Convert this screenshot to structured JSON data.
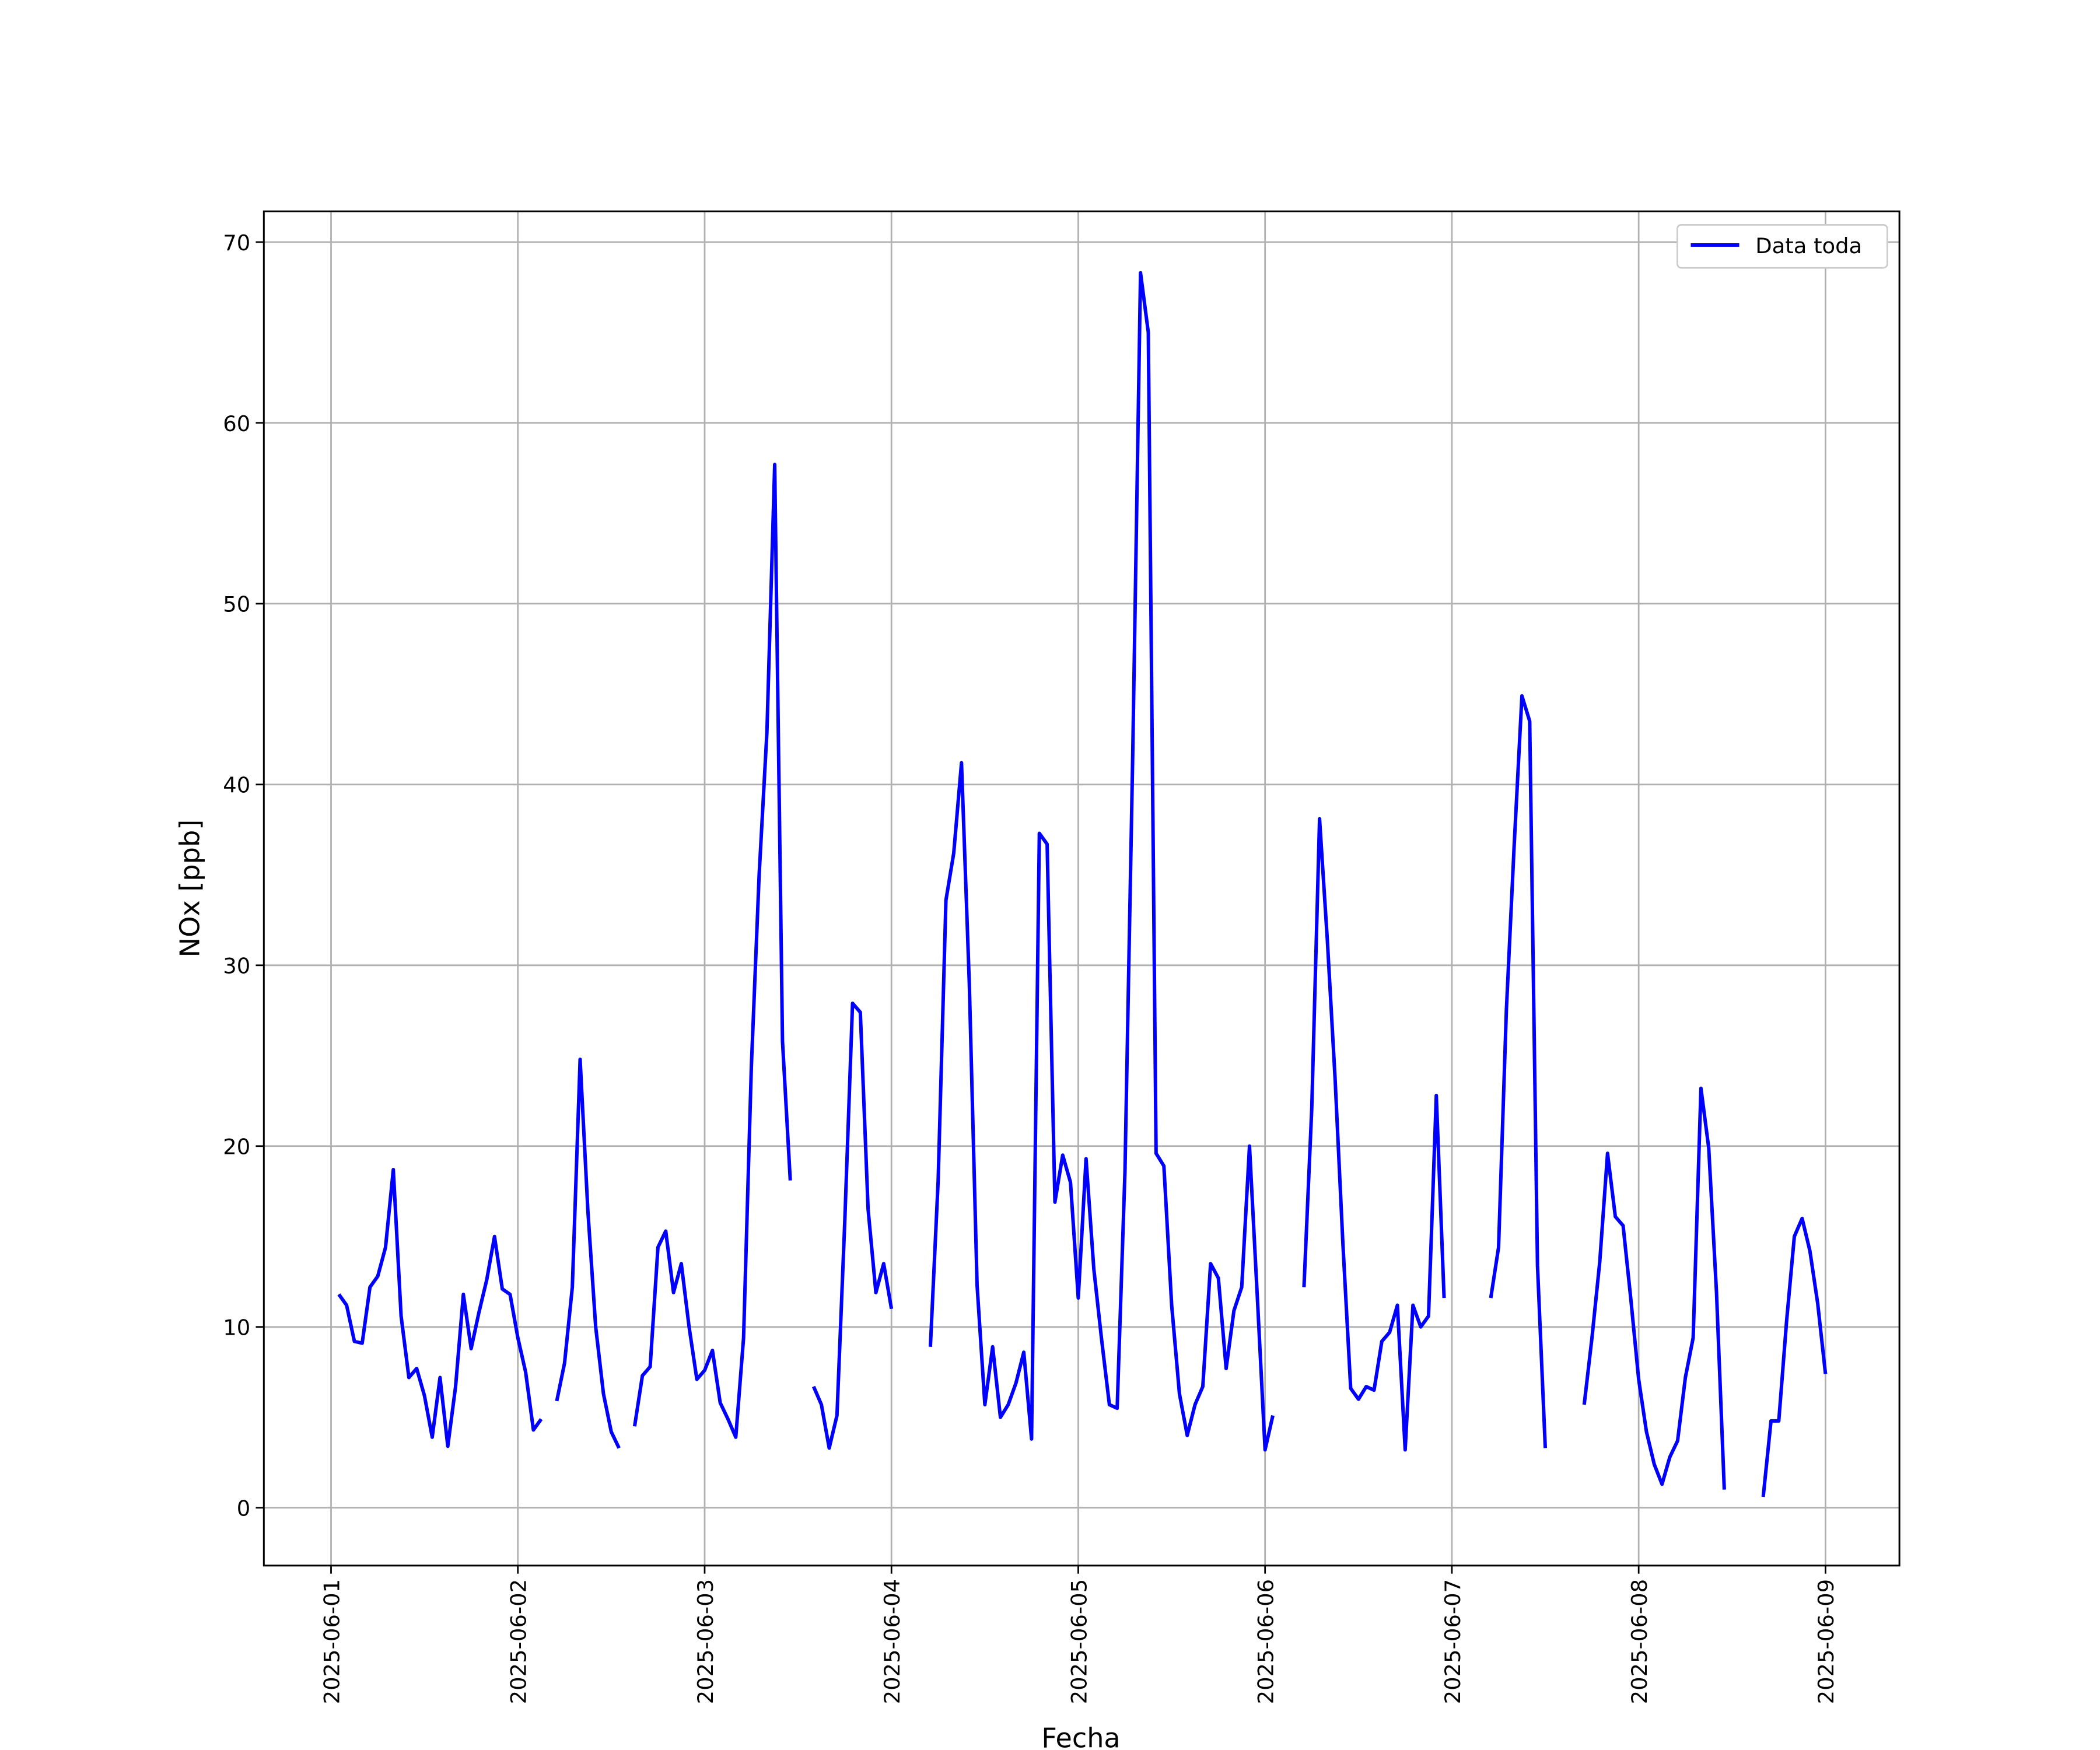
{
  "chart_data": {
    "type": "line",
    "xlabel": "Fecha",
    "ylabel": "NOx [ppb]",
    "x": [
      "2025-06-01 01:00",
      "2025-06-01 02:00",
      "2025-06-01 03:00",
      "2025-06-01 04:00",
      "2025-06-01 05:00",
      "2025-06-01 06:00",
      "2025-06-01 07:00",
      "2025-06-01 08:00",
      "2025-06-01 09:00",
      "2025-06-01 10:00",
      "2025-06-01 11:00",
      "2025-06-01 12:00",
      "2025-06-01 13:00",
      "2025-06-01 14:00",
      "2025-06-01 15:00",
      "2025-06-01 16:00",
      "2025-06-01 17:00",
      "2025-06-01 18:00",
      "2025-06-01 19:00",
      "2025-06-01 20:00",
      "2025-06-01 21:00",
      "2025-06-01 22:00",
      "2025-06-01 23:00",
      "2025-06-02 00:00",
      "2025-06-02 01:00",
      "2025-06-02 02:00",
      "2025-06-02 03:00",
      "2025-06-02 04:00",
      "2025-06-02 05:00",
      "2025-06-02 06:00",
      "2025-06-02 07:00",
      "2025-06-02 08:00",
      "2025-06-02 09:00",
      "2025-06-02 10:00",
      "2025-06-02 11:00",
      "2025-06-02 12:00",
      "2025-06-02 13:00",
      "2025-06-02 14:00",
      "2025-06-02 15:00",
      "2025-06-02 16:00",
      "2025-06-02 17:00",
      "2025-06-02 18:00",
      "2025-06-02 19:00",
      "2025-06-02 20:00",
      "2025-06-02 21:00",
      "2025-06-02 22:00",
      "2025-06-02 23:00",
      "2025-06-03 00:00",
      "2025-06-03 01:00",
      "2025-06-03 02:00",
      "2025-06-03 03:00",
      "2025-06-03 04:00",
      "2025-06-03 05:00",
      "2025-06-03 06:00",
      "2025-06-03 07:00",
      "2025-06-03 08:00",
      "2025-06-03 09:00",
      "2025-06-03 10:00",
      "2025-06-03 11:00",
      "2025-06-03 12:00",
      "2025-06-03 13:00",
      "2025-06-03 14:00",
      "2025-06-03 15:00",
      "2025-06-03 16:00",
      "2025-06-03 17:00",
      "2025-06-03 18:00",
      "2025-06-03 19:00",
      "2025-06-03 20:00",
      "2025-06-03 21:00",
      "2025-06-03 22:00",
      "2025-06-03 23:00",
      "2025-06-04 00:00",
      "2025-06-04 01:00",
      "2025-06-04 02:00",
      "2025-06-04 03:00",
      "2025-06-04 04:00",
      "2025-06-04 05:00",
      "2025-06-04 06:00",
      "2025-06-04 07:00",
      "2025-06-04 08:00",
      "2025-06-04 09:00",
      "2025-06-04 10:00",
      "2025-06-04 11:00",
      "2025-06-04 12:00",
      "2025-06-04 13:00",
      "2025-06-04 14:00",
      "2025-06-04 15:00",
      "2025-06-04 16:00",
      "2025-06-04 17:00",
      "2025-06-04 18:00",
      "2025-06-04 19:00",
      "2025-06-04 20:00",
      "2025-06-04 21:00",
      "2025-06-04 22:00",
      "2025-06-04 23:00",
      "2025-06-05 00:00",
      "2025-06-05 01:00",
      "2025-06-05 02:00",
      "2025-06-05 03:00",
      "2025-06-05 04:00",
      "2025-06-05 05:00",
      "2025-06-05 06:00",
      "2025-06-05 07:00",
      "2025-06-05 08:00",
      "2025-06-05 09:00",
      "2025-06-05 10:00",
      "2025-06-05 11:00",
      "2025-06-05 12:00",
      "2025-06-05 13:00",
      "2025-06-05 14:00",
      "2025-06-05 15:00",
      "2025-06-05 16:00",
      "2025-06-05 17:00",
      "2025-06-05 18:00",
      "2025-06-05 19:00",
      "2025-06-05 20:00",
      "2025-06-05 21:00",
      "2025-06-05 22:00",
      "2025-06-05 23:00",
      "2025-06-06 00:00",
      "2025-06-06 01:00",
      "2025-06-06 02:00",
      "2025-06-06 03:00",
      "2025-06-06 04:00",
      "2025-06-06 05:00",
      "2025-06-06 06:00",
      "2025-06-06 07:00",
      "2025-06-06 08:00",
      "2025-06-06 09:00",
      "2025-06-06 10:00",
      "2025-06-06 11:00",
      "2025-06-06 12:00",
      "2025-06-06 13:00",
      "2025-06-06 14:00",
      "2025-06-06 15:00",
      "2025-06-06 16:00",
      "2025-06-06 17:00",
      "2025-06-06 18:00",
      "2025-06-06 19:00",
      "2025-06-06 20:00",
      "2025-06-06 21:00",
      "2025-06-06 22:00",
      "2025-06-06 23:00",
      "2025-06-07 00:00",
      "2025-06-07 01:00",
      "2025-06-07 02:00",
      "2025-06-07 03:00",
      "2025-06-07 04:00",
      "2025-06-07 05:00",
      "2025-06-07 06:00",
      "2025-06-07 07:00",
      "2025-06-07 08:00",
      "2025-06-07 09:00",
      "2025-06-07 10:00",
      "2025-06-07 11:00",
      "2025-06-07 12:00",
      "2025-06-07 13:00",
      "2025-06-07 14:00",
      "2025-06-07 15:00",
      "2025-06-07 16:00",
      "2025-06-07 17:00",
      "2025-06-07 18:00",
      "2025-06-07 19:00",
      "2025-06-07 20:00",
      "2025-06-07 21:00",
      "2025-06-07 22:00",
      "2025-06-07 23:00",
      "2025-06-08 00:00",
      "2025-06-08 01:00",
      "2025-06-08 02:00",
      "2025-06-08 03:00",
      "2025-06-08 04:00",
      "2025-06-08 05:00",
      "2025-06-08 06:00",
      "2025-06-08 07:00",
      "2025-06-08 08:00",
      "2025-06-08 09:00",
      "2025-06-08 10:00",
      "2025-06-08 11:00",
      "2025-06-08 12:00",
      "2025-06-08 13:00",
      "2025-06-08 14:00",
      "2025-06-08 15:00",
      "2025-06-08 16:00",
      "2025-06-08 17:00",
      "2025-06-08 18:00",
      "2025-06-08 19:00",
      "2025-06-08 20:00",
      "2025-06-08 21:00",
      "2025-06-08 22:00",
      "2025-06-08 23:00",
      "2025-06-09 00:00"
    ],
    "series": [
      {
        "name": "Data toda",
        "color": "#0000ff",
        "values": [
          11.8,
          11.2,
          9.2,
          9.1,
          12.2,
          12.8,
          14.4,
          18.7,
          10.6,
          7.2,
          7.7,
          6.2,
          3.9,
          7.2,
          3.4,
          6.7,
          11.8,
          8.8,
          10.8,
          12.6,
          15.0,
          12.1,
          11.8,
          9.4,
          7.5,
          4.3,
          4.9,
          null,
          5.9,
          8.0,
          12.2,
          24.8,
          16.4,
          10.0,
          6.3,
          4.2,
          3.3,
          null,
          4.5,
          7.3,
          7.8,
          14.4,
          15.3,
          11.9,
          13.5,
          10.0,
          7.1,
          7.6,
          8.7,
          5.8,
          4.9,
          3.9,
          9.4,
          24.4,
          35.0,
          42.9,
          57.7,
          25.8,
          18.1,
          null,
          null,
          6.7,
          5.7,
          3.3,
          5.1,
          15.8,
          27.9,
          27.4,
          16.5,
          11.9,
          13.5,
          11.0,
          null,
          null,
          null,
          null,
          8.9,
          18.1,
          33.6,
          36.2,
          41.2,
          29.0,
          12.3,
          5.7,
          8.9,
          5.0,
          5.7,
          6.9,
          8.6,
          3.8,
          37.3,
          36.7,
          16.9,
          19.5,
          18.0,
          11.6,
          19.3,
          13.2,
          9.3,
          5.7,
          5.5,
          18.6,
          41.7,
          68.3,
          65.0,
          19.6,
          18.9,
          11.2,
          6.3,
          4.0,
          5.7,
          6.7,
          13.5,
          12.7,
          7.7,
          10.9,
          12.2,
          20.0,
          11.7,
          3.2,
          5.1,
          null,
          null,
          null,
          12.2,
          22.1,
          38.1,
          31.4,
          23.7,
          14.6,
          6.6,
          6.0,
          6.7,
          6.5,
          9.2,
          9.7,
          11.2,
          3.2,
          11.2,
          10.0,
          10.6,
          22.8,
          11.6,
          null,
          null,
          null,
          null,
          null,
          11.6,
          14.4,
          27.5,
          36.6,
          44.9,
          43.5,
          13.4,
          3.3,
          null,
          null,
          null,
          null,
          5.7,
          9.4,
          13.6,
          19.6,
          16.1,
          15.6,
          11.5,
          7.1,
          4.2,
          2.4,
          1.3,
          2.8,
          3.7,
          7.2,
          9.4,
          23.2,
          19.9,
          11.9,
          1.0,
          null,
          null,
          null,
          null,
          0.6,
          4.8,
          4.8,
          10.3,
          15.0,
          16.0,
          14.2,
          11.3,
          7.4
        ]
      }
    ],
    "xlim": [
      "2025-05-31 15:22",
      "2025-06-09 09:30"
    ],
    "xticks": [
      "2025-06-01",
      "2025-06-02",
      "2025-06-03",
      "2025-06-04",
      "2025-06-05",
      "2025-06-06",
      "2025-06-07",
      "2025-06-08",
      "2025-06-09"
    ],
    "ylim": [
      -3.2,
      71.7
    ],
    "yticks": [
      0,
      10,
      20,
      30,
      40,
      50,
      60,
      70
    ],
    "grid": true,
    "legend": "upper right"
  }
}
